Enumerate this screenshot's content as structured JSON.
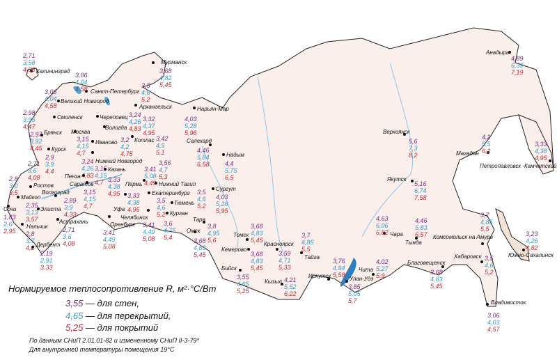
{
  "legend": {
    "title": "Нормируемое теплосопротивление R, м²·°C/Вт",
    "items": [
      {
        "value": "3,55",
        "label": "— для стен,",
        "color": "#7b2d7f"
      },
      {
        "value": "4,65",
        "label": "— для перекрытий,",
        "color": "#2f9bc9"
      },
      {
        "value": "5,25",
        "label": "— для покрытий",
        "color": "#c12a35"
      }
    ],
    "note1": "По данным СНиП 2.01.01-82 и измененному СНиП II-3-79*",
    "note2": "Для внутренней температуры помещения 19°С"
  },
  "colors": {
    "land": "#fbefeb",
    "water": "#4aa8d8",
    "border": "#222222"
  },
  "cities": [
    {
      "name": "Калининград",
      "wall": "2,71",
      "floor": "3,58",
      "roof": "4,08"
    },
    {
      "name": "Санкт-Петербург",
      "wall": "3,06",
      "floor": "4,04",
      "roof": "4,58"
    },
    {
      "name": "Великий Новгород",
      "wall": "3,06",
      "floor": "4,04",
      "roof": "4,58"
    },
    {
      "name": "Мурманск",
      "wall": "3,68",
      "floor": "4,82",
      "roof": "5,45"
    },
    {
      "name": "Архангельск",
      "wall": "3,5",
      "floor": "4,6",
      "roof": "5,2"
    },
    {
      "name": "Череповец",
      "wall": "3,24",
      "floor": "4,26",
      "roof": "4,83"
    },
    {
      "name": "Вологда",
      "wall": "3,32",
      "floor": "4,37",
      "roof": "4,95"
    },
    {
      "name": "Котлас",
      "wall": "3,2",
      "floor": "4,2",
      "roof": "4,75"
    },
    {
      "name": "",
      "wall": "3,42",
      "floor": "4,5",
      "roof": "5,1"
    },
    {
      "name": "Нарьян-Мар",
      "wall": "4,03",
      "floor": "5,28",
      "roof": "5,96"
    },
    {
      "name": "Смоленск",
      "wall": "2,98",
      "floor": "3,95",
      "roof": "4,47"
    },
    {
      "name": "Москва",
      "wall": "3,15",
      "floor": "4,15",
      "roof": "4,7"
    },
    {
      "name": "Иваново",
      "wall": "",
      "floor": "",
      "roof": ""
    },
    {
      "name": "Брянск",
      "wall": "2,97",
      "floor": "3,92",
      "roof": "4,45"
    },
    {
      "name": "Курск",
      "wall": "2,9",
      "floor": "3,9",
      "roof": "4,4"
    },
    {
      "name": "Нижний Новгород",
      "wall": "3,24",
      "floor": "4,26",
      "roof": "4,83"
    },
    {
      "name": "Пенза",
      "wall": "3,15",
      "floor": "4,15",
      "roof": "4,7"
    },
    {
      "name": "Казань",
      "wall": "3,33",
      "floor": "4,38",
      "roof": "4,95"
    },
    {
      "name": "Пермь",
      "wall": "3,41",
      "floor": "5,08",
      "roof": "4,49"
    },
    {
      "name": "Нижний Тагил",
      "wall": "3,56",
      "floor": "4,7",
      "roof": "5,3"
    },
    {
      "name": "Салехард",
      "wall": "4,46",
      "floor": "5,84",
      "roof": "6,58"
    },
    {
      "name": "Надым",
      "wall": "4,4",
      "floor": "5,75",
      "roof": "6,5"
    },
    {
      "name": "Сургут",
      "wall": "4,03",
      "floor": "5,28",
      "roof": "5,95"
    },
    {
      "name": "Екатеринбург",
      "wall": "3,5",
      "floor": "4,6",
      "roof": "5,2"
    },
    {
      "name": "Тюмень",
      "wall": "3,5",
      "floor": "4,6",
      "roof": "5,2"
    },
    {
      "name": "Уфа",
      "wall": "3,33",
      "floor": "4,38",
      "roof": "4,95"
    },
    {
      "name": "Челябинск",
      "wall": "3,41",
      "floor": "4,49",
      "roof": "5,08"
    },
    {
      "name": "Оренбург",
      "wall": "3,41",
      "floor": "4,49",
      "roof": "5,08"
    },
    {
      "name": "Курган",
      "wall": "3,6",
      "floor": "4,75",
      "roof": "5,4"
    },
    {
      "name": "Тара",
      "wall": "3,8",
      "floor": "4,95",
      "roof": "5,6"
    },
    {
      "name": "Омск",
      "wall": "3,68",
      "floor": "4,83",
      "roof": "5,45"
    },
    {
      "name": "Томск",
      "wall": "3,68",
      "floor": "4,83",
      "roof": "5,45"
    },
    {
      "name": "Кемерово",
      "wall": "3,68",
      "floor": "4,83",
      "roof": "5,45"
    },
    {
      "name": "Красноярск",
      "wall": "3,59",
      "floor": "4,71",
      "roof": "5,33"
    },
    {
      "name": "Тайга",
      "wall": "3,7",
      "floor": "4,85",
      "roof": "5,5"
    },
    {
      "name": "Бийск",
      "wall": "3,55",
      "floor": "4,65",
      "roof": "5,25"
    },
    {
      "name": "Кызыл",
      "wall": "4,21",
      "floor": "5,52",
      "roof": "6,22"
    },
    {
      "name": "Иркутск",
      "wall": "3,76",
      "floor": "4,94",
      "roof": "5,58"
    },
    {
      "name": "Улан-Удэ",
      "wall": "3,85",
      "floor": "5,05",
      "roof": "5,7"
    },
    {
      "name": "Чита",
      "wall": "4,02",
      "floor": "5,27",
      "roof": "5,9"
    },
    {
      "name": "Саратов",
      "wall": "3,15",
      "floor": "4,15",
      "roof": "4,7"
    },
    {
      "name": "Волгоград",
      "wall": "2,89",
      "floor": "3,9",
      "roof": "4,33"
    },
    {
      "name": "Ростов",
      "wall": "2,71",
      "floor": "3,6",
      "roof": "4,08"
    },
    {
      "name": "",
      "wall": "2,8",
      "floor": "3,0",
      "roof": "3,5"
    },
    {
      "name": "Майкоп",
      "wall": "",
      "floor": "",
      "roof": ""
    },
    {
      "name": "Сочи",
      "wall": "1,83",
      "floor": "2,6",
      "roof": "2,95"
    },
    {
      "name": "Элиста",
      "wall": "2,35",
      "floor": "3,13",
      "roof": "3,57"
    },
    {
      "name": "Астрахань",
      "wall": "2,71",
      "floor": "3,6",
      "roof": "4,08"
    },
    {
      "name": "Нальчик",
      "wall": "2,8",
      "floor": "3,7",
      "roof": "4,2"
    },
    {
      "name": "Дербент",
      "wall": "2,19",
      "floor": "2,91",
      "roof": "3,33"
    },
    {
      "name": "Верхоянск",
      "wall": "5,6",
      "floor": "7,3",
      "roof": "8,2"
    },
    {
      "name": "Якутск",
      "wall": "5,16",
      "floor": "6,74",
      "roof": "7,58"
    },
    {
      "name": "Магадан",
      "wall": "4,2",
      "floor": "5,5",
      "roof": "6,2"
    },
    {
      "name": "Петропавловск -Камчатский",
      "wall": "3,33",
      "floor": "4,38",
      "roof": "4,95"
    },
    {
      "name": "Анадырь",
      "wall": "4,89",
      "floor": "6,39",
      "roof": "7,19"
    },
    {
      "name": "Чара",
      "wall": "4,63",
      "floor": "6,06",
      "roof": "6,82"
    },
    {
      "name": "Тында",
      "wall": "4,46",
      "floor": "5,83",
      "roof": "6,57"
    },
    {
      "name": "Комсомольск на Амуре",
      "wall": "3,7",
      "floor": "4,85",
      "roof": "5,5"
    },
    {
      "name": "Хабаровск",
      "wall": "3,5",
      "floor": "4,6",
      "roof": "5,2"
    },
    {
      "name": "Благовещенск",
      "wall": "3,68",
      "floor": "4,83",
      "roof": "5,45"
    },
    {
      "name": "Южно-Сахалинск",
      "wall": "3,23",
      "floor": "4,26",
      "roof": "4,82"
    },
    {
      "name": "Владивосток",
      "wall": "3,06",
      "floor": "4,03",
      "roof": "4,57"
    }
  ]
}
